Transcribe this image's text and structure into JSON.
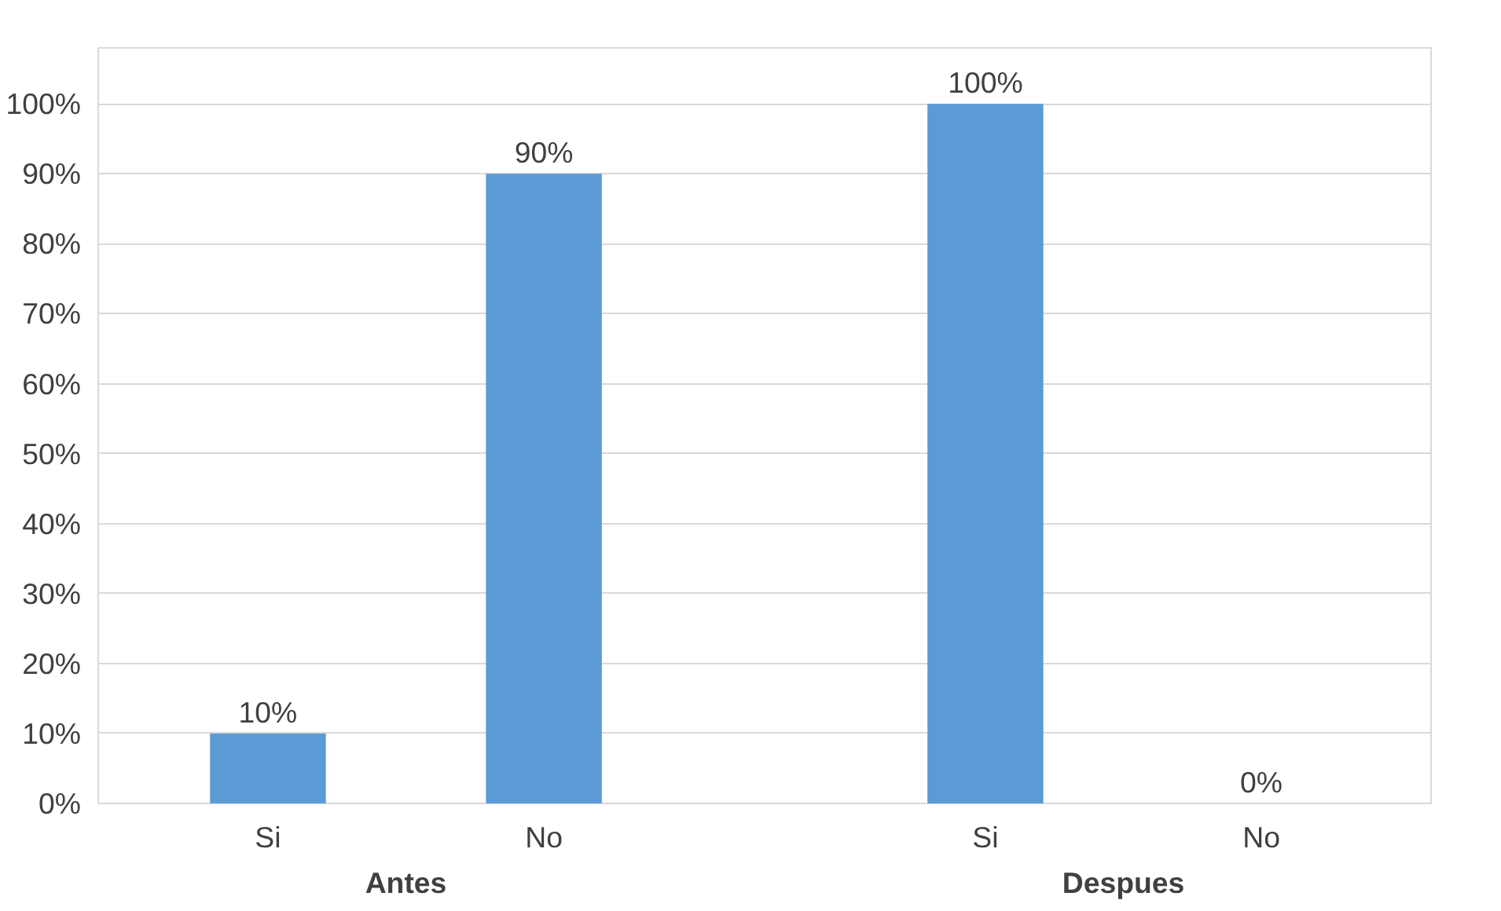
{
  "chart_data": {
    "type": "bar",
    "categories": [
      "Si",
      "No",
      "Si",
      "No"
    ],
    "values": [
      10,
      90,
      100,
      0
    ],
    "value_labels": [
      "10%",
      "90%",
      "100%",
      "0%"
    ],
    "color": "#5b9bd5",
    "ylim": [
      0,
      108
    ],
    "yticks": [
      {
        "value": 0,
        "label": "0%"
      },
      {
        "value": 10,
        "label": "10%"
      },
      {
        "value": 20,
        "label": "20%"
      },
      {
        "value": 30,
        "label": "30%"
      },
      {
        "value": 40,
        "label": "40%"
      },
      {
        "value": 50,
        "label": "50%"
      },
      {
        "value": 60,
        "label": "60%"
      },
      {
        "value": 70,
        "label": "70%"
      },
      {
        "value": 80,
        "label": "80%"
      },
      {
        "value": 90,
        "label": "90%"
      },
      {
        "value": 100,
        "label": "100%"
      }
    ],
    "grid": "y",
    "annotations": [
      "Antes",
      "Despues"
    ]
  }
}
